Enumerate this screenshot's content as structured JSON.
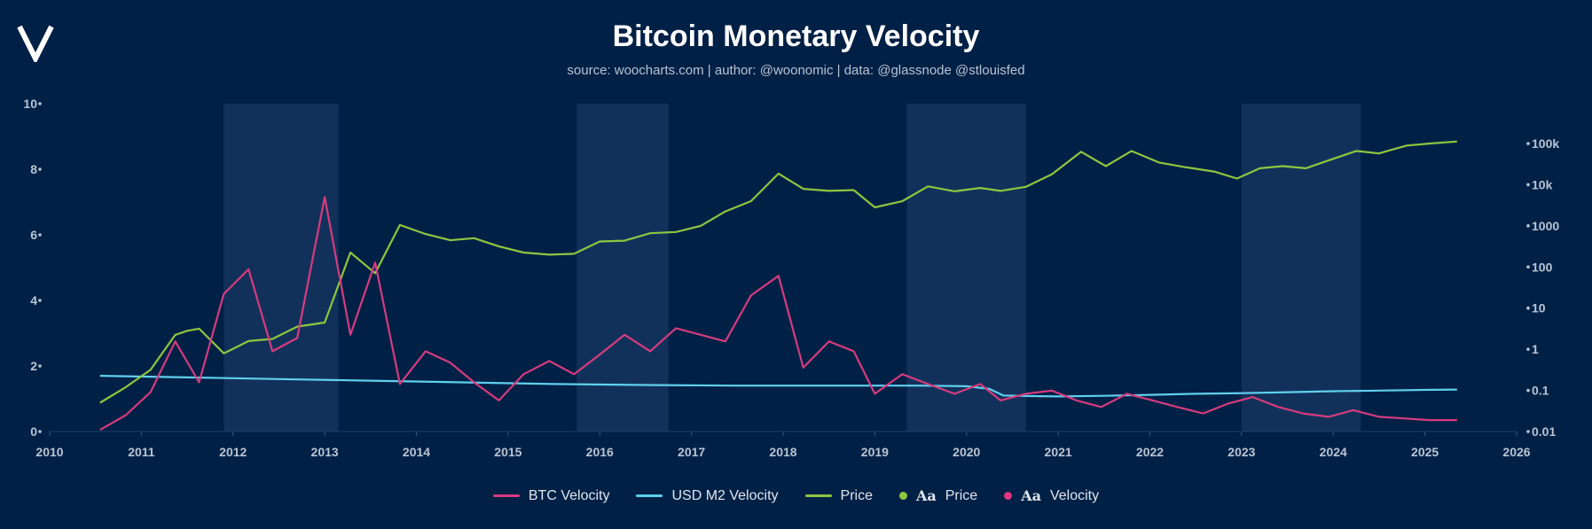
{
  "title": "Bitcoin Monetary Velocity",
  "subtitle": "source: woocharts.com | author: @woonomic | data: @glassnode @stlouisfed",
  "colors": {
    "background": "#012046",
    "btc_velocity": "#d63b7e",
    "usd_m2_velocity": "#5fd0ee",
    "price": "#8ec63f",
    "shade": "#12315a"
  },
  "legend": [
    {
      "label": "BTC Velocity",
      "kind": "line",
      "color": "#d63b7e"
    },
    {
      "label": "USD M2 Velocity",
      "kind": "line",
      "color": "#5fd0ee"
    },
    {
      "label": "Price",
      "kind": "line",
      "color": "#8ec63f"
    },
    {
      "label": "Price",
      "kind": "dot",
      "aa": "Aa",
      "color": "#8ec63f"
    },
    {
      "label": "Velocity",
      "kind": "dot",
      "aa": "Aa",
      "color": "#e0357f"
    }
  ],
  "chart_data": {
    "type": "line",
    "title": "Bitcoin Monetary Velocity",
    "xlim": [
      2010,
      2026
    ],
    "x_ticks": [
      "2010",
      "2011",
      "2012",
      "2013",
      "2014",
      "2015",
      "2016",
      "2017",
      "2018",
      "2019",
      "2020",
      "2021",
      "2022",
      "2023",
      "2024",
      "2025",
      "2026"
    ],
    "left_axis": {
      "ylim": [
        0,
        10
      ],
      "ticks": [
        "0",
        "2",
        "4",
        "6",
        "8",
        "10"
      ]
    },
    "right_axis": {
      "scale": "log",
      "ylim_log10": [
        -2,
        5.9
      ],
      "ticks": [
        "0.01",
        "0.1",
        "1",
        "10",
        "100",
        "1000",
        "10k",
        "100k"
      ],
      "tick_log10": [
        -2,
        -1,
        0,
        1,
        2,
        3,
        4,
        5
      ]
    },
    "shaded_ranges": [
      [
        2011.9,
        2013.15
      ],
      [
        2015.75,
        2016.75
      ],
      [
        2019.35,
        2020.65
      ],
      [
        2023.0,
        2024.3
      ]
    ],
    "series": [
      {
        "name": "BTC Velocity",
        "axis": "left",
        "x": [
          2010.55,
          2010.83,
          2011.1,
          2011.37,
          2011.63,
          2011.9,
          2012.17,
          2012.43,
          2012.7,
          2013.0,
          2013.28,
          2013.55,
          2013.82,
          2014.1,
          2014.37,
          2014.63,
          2014.9,
          2015.17,
          2015.45,
          2015.72,
          2016.0,
          2016.27,
          2016.55,
          2016.83,
          2017.1,
          2017.37,
          2017.65,
          2017.95,
          2018.22,
          2018.5,
          2018.77,
          2019.0,
          2019.3,
          2019.58,
          2019.87,
          2020.15,
          2020.37,
          2020.65,
          2020.93,
          2021.2,
          2021.47,
          2021.75,
          2022.03,
          2022.3,
          2022.58,
          2022.85,
          2023.12,
          2023.4,
          2023.67,
          2023.95,
          2024.22,
          2024.5,
          2024.77,
          2025.05,
          2025.35
        ],
        "values": [
          0.05,
          0.5,
          1.2,
          2.75,
          1.5,
          4.2,
          4.95,
          2.45,
          2.85,
          7.15,
          2.95,
          5.15,
          1.45,
          2.45,
          2.1,
          1.5,
          0.95,
          1.75,
          2.15,
          1.75,
          2.35,
          2.95,
          2.45,
          3.15,
          2.95,
          2.75,
          4.15,
          4.75,
          1.95,
          2.75,
          2.45,
          1.15,
          1.75,
          1.45,
          1.15,
          1.45,
          0.95,
          1.15,
          1.25,
          0.95,
          0.75,
          1.15,
          0.95,
          0.75,
          0.55,
          0.85,
          1.05,
          0.75,
          0.55,
          0.45,
          0.65,
          0.45,
          0.4,
          0.35,
          0.35
        ]
      },
      {
        "name": "USD M2 Velocity",
        "axis": "left",
        "x": [
          2010.55,
          2011.5,
          2012.5,
          2013.5,
          2014.5,
          2015.5,
          2016.5,
          2017.5,
          2018.5,
          2019.5,
          2020.0,
          2020.25,
          2020.4,
          2020.7,
          2021.0,
          2021.5,
          2022.0,
          2022.5,
          2023.0,
          2023.5,
          2024.0,
          2024.5,
          2025.0,
          2025.35
        ],
        "values": [
          1.7,
          1.65,
          1.6,
          1.55,
          1.5,
          1.45,
          1.42,
          1.4,
          1.4,
          1.4,
          1.38,
          1.3,
          1.1,
          1.08,
          1.07,
          1.09,
          1.12,
          1.15,
          1.17,
          1.2,
          1.23,
          1.25,
          1.27,
          1.28
        ]
      },
      {
        "name": "Price",
        "axis": "right",
        "scale": "log10",
        "x": [
          2010.55,
          2010.83,
          2011.1,
          2011.37,
          2011.5,
          2011.63,
          2011.9,
          2012.17,
          2012.43,
          2012.7,
          2013.0,
          2013.28,
          2013.55,
          2013.82,
          2014.1,
          2014.37,
          2014.63,
          2014.9,
          2015.17,
          2015.45,
          2015.72,
          2016.0,
          2016.27,
          2016.55,
          2016.83,
          2017.1,
          2017.37,
          2017.65,
          2017.95,
          2018.22,
          2018.5,
          2018.77,
          2019.0,
          2019.3,
          2019.58,
          2019.87,
          2020.15,
          2020.37,
          2020.65,
          2020.93,
          2021.25,
          2021.52,
          2021.8,
          2022.1,
          2022.4,
          2022.7,
          2022.95,
          2023.2,
          2023.45,
          2023.7,
          2024.0,
          2024.25,
          2024.5,
          2024.8,
          2025.05,
          2025.35
        ],
        "values": [
          -1.3,
          -0.92,
          -0.5,
          0.35,
          0.45,
          0.5,
          -0.1,
          0.2,
          0.25,
          0.55,
          0.65,
          2.35,
          1.85,
          3.02,
          2.8,
          2.65,
          2.7,
          2.5,
          2.35,
          2.3,
          2.32,
          2.62,
          2.64,
          2.82,
          2.85,
          3.0,
          3.35,
          3.6,
          4.27,
          3.9,
          3.85,
          3.87,
          3.45,
          3.6,
          3.96,
          3.84,
          3.92,
          3.85,
          3.95,
          4.25,
          4.8,
          4.45,
          4.82,
          4.54,
          4.42,
          4.32,
          4.15,
          4.4,
          4.45,
          4.4,
          4.63,
          4.82,
          4.76,
          4.95,
          5.0,
          5.05
        ]
      }
    ]
  }
}
